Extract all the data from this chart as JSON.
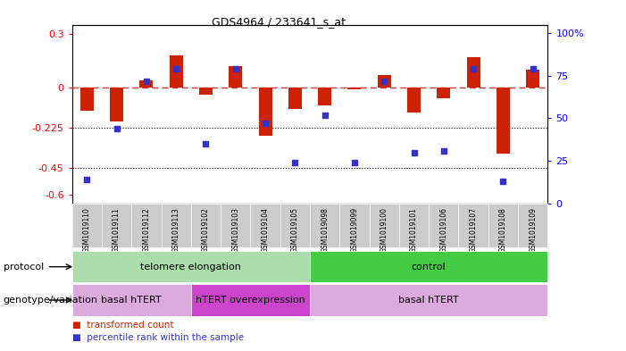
{
  "title": "GDS4964 / 233641_s_at",
  "samples": [
    "GSM1019110",
    "GSM1019111",
    "GSM1019112",
    "GSM1019113",
    "GSM1019102",
    "GSM1019103",
    "GSM1019104",
    "GSM1019105",
    "GSM1019098",
    "GSM1019099",
    "GSM1019100",
    "GSM1019101",
    "GSM1019106",
    "GSM1019107",
    "GSM1019108",
    "GSM1019109"
  ],
  "bar_values": [
    -0.13,
    -0.19,
    0.04,
    0.18,
    -0.04,
    0.12,
    -0.27,
    -0.12,
    -0.1,
    -0.01,
    0.07,
    -0.14,
    -0.06,
    0.17,
    -0.37,
    0.1
  ],
  "dot_values_pct": [
    14,
    44,
    72,
    79,
    35,
    79,
    47,
    24,
    52,
    24,
    72,
    30,
    31,
    79,
    13,
    79
  ],
  "ylim_left": [
    -0.65,
    0.35
  ],
  "ylim_right": [
    0,
    105
  ],
  "yticks_left": [
    0.3,
    0.0,
    -0.225,
    -0.45,
    -0.6
  ],
  "yticks_left_labels": [
    "0.3",
    "0",
    "-0.225",
    "-0.45",
    "-0.6"
  ],
  "yticks_right": [
    100,
    75,
    50,
    25,
    0
  ],
  "yticks_right_labels": [
    "100%",
    "75",
    "50",
    "25",
    "0"
  ],
  "dotted_lines": [
    -0.225,
    -0.45
  ],
  "bar_color": "#cc2200",
  "dot_color": "#3333cc",
  "protocol_groups": [
    {
      "label": "telomere elongation",
      "start": 0,
      "end": 7,
      "color": "#aaddaa"
    },
    {
      "label": "control",
      "start": 8,
      "end": 15,
      "color": "#44cc44"
    }
  ],
  "genotype_groups": [
    {
      "label": "basal hTERT",
      "start": 0,
      "end": 3,
      "color": "#ddaadd"
    },
    {
      "label": "hTERT overexpression",
      "start": 4,
      "end": 7,
      "color": "#cc44cc"
    },
    {
      "label": "basal hTERT",
      "start": 8,
      "end": 15,
      "color": "#ddaadd"
    }
  ],
  "legend_items": [
    {
      "color": "#cc2200",
      "label": "transformed count"
    },
    {
      "color": "#3333cc",
      "label": "percentile rank within the sample"
    }
  ],
  "sample_bg_color": "#cccccc",
  "protocol_label": "protocol",
  "genotype_label": "genotype/variation"
}
